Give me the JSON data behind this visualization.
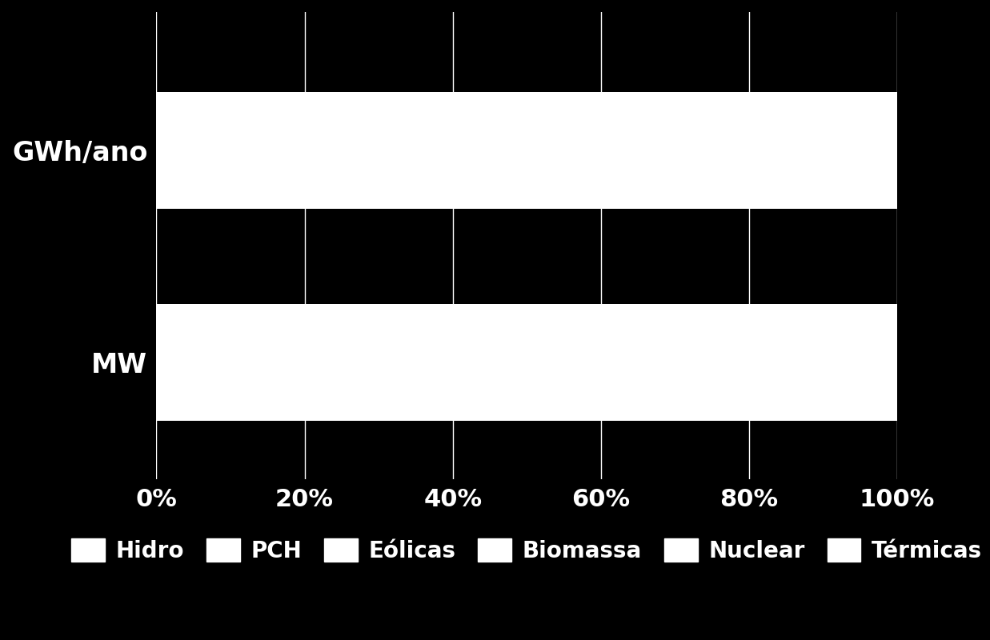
{
  "categories": [
    "MW",
    "GWh/ano"
  ],
  "background_color": "#000000",
  "text_color": "#ffffff",
  "bar_color": "#ffffff",
  "bar_height": 0.55,
  "xtick_labels": [
    "0%",
    "20%",
    "40%",
    "60%",
    "80%",
    "100%"
  ],
  "xtick_values": [
    0.0,
    0.2,
    0.4,
    0.6,
    0.8,
    1.0
  ],
  "legend_labels": [
    "Hidro",
    "PCH",
    "Eólicas",
    "Biomassa",
    "Nuclear",
    "Térmicas"
  ],
  "legend_color": "#ffffff",
  "ylabel_fontsize": 24,
  "tick_fontsize": 22,
  "legend_fontsize": 20,
  "xlim": [
    0.0,
    1.0
  ],
  "ylim": [
    -0.55,
    1.65
  ]
}
